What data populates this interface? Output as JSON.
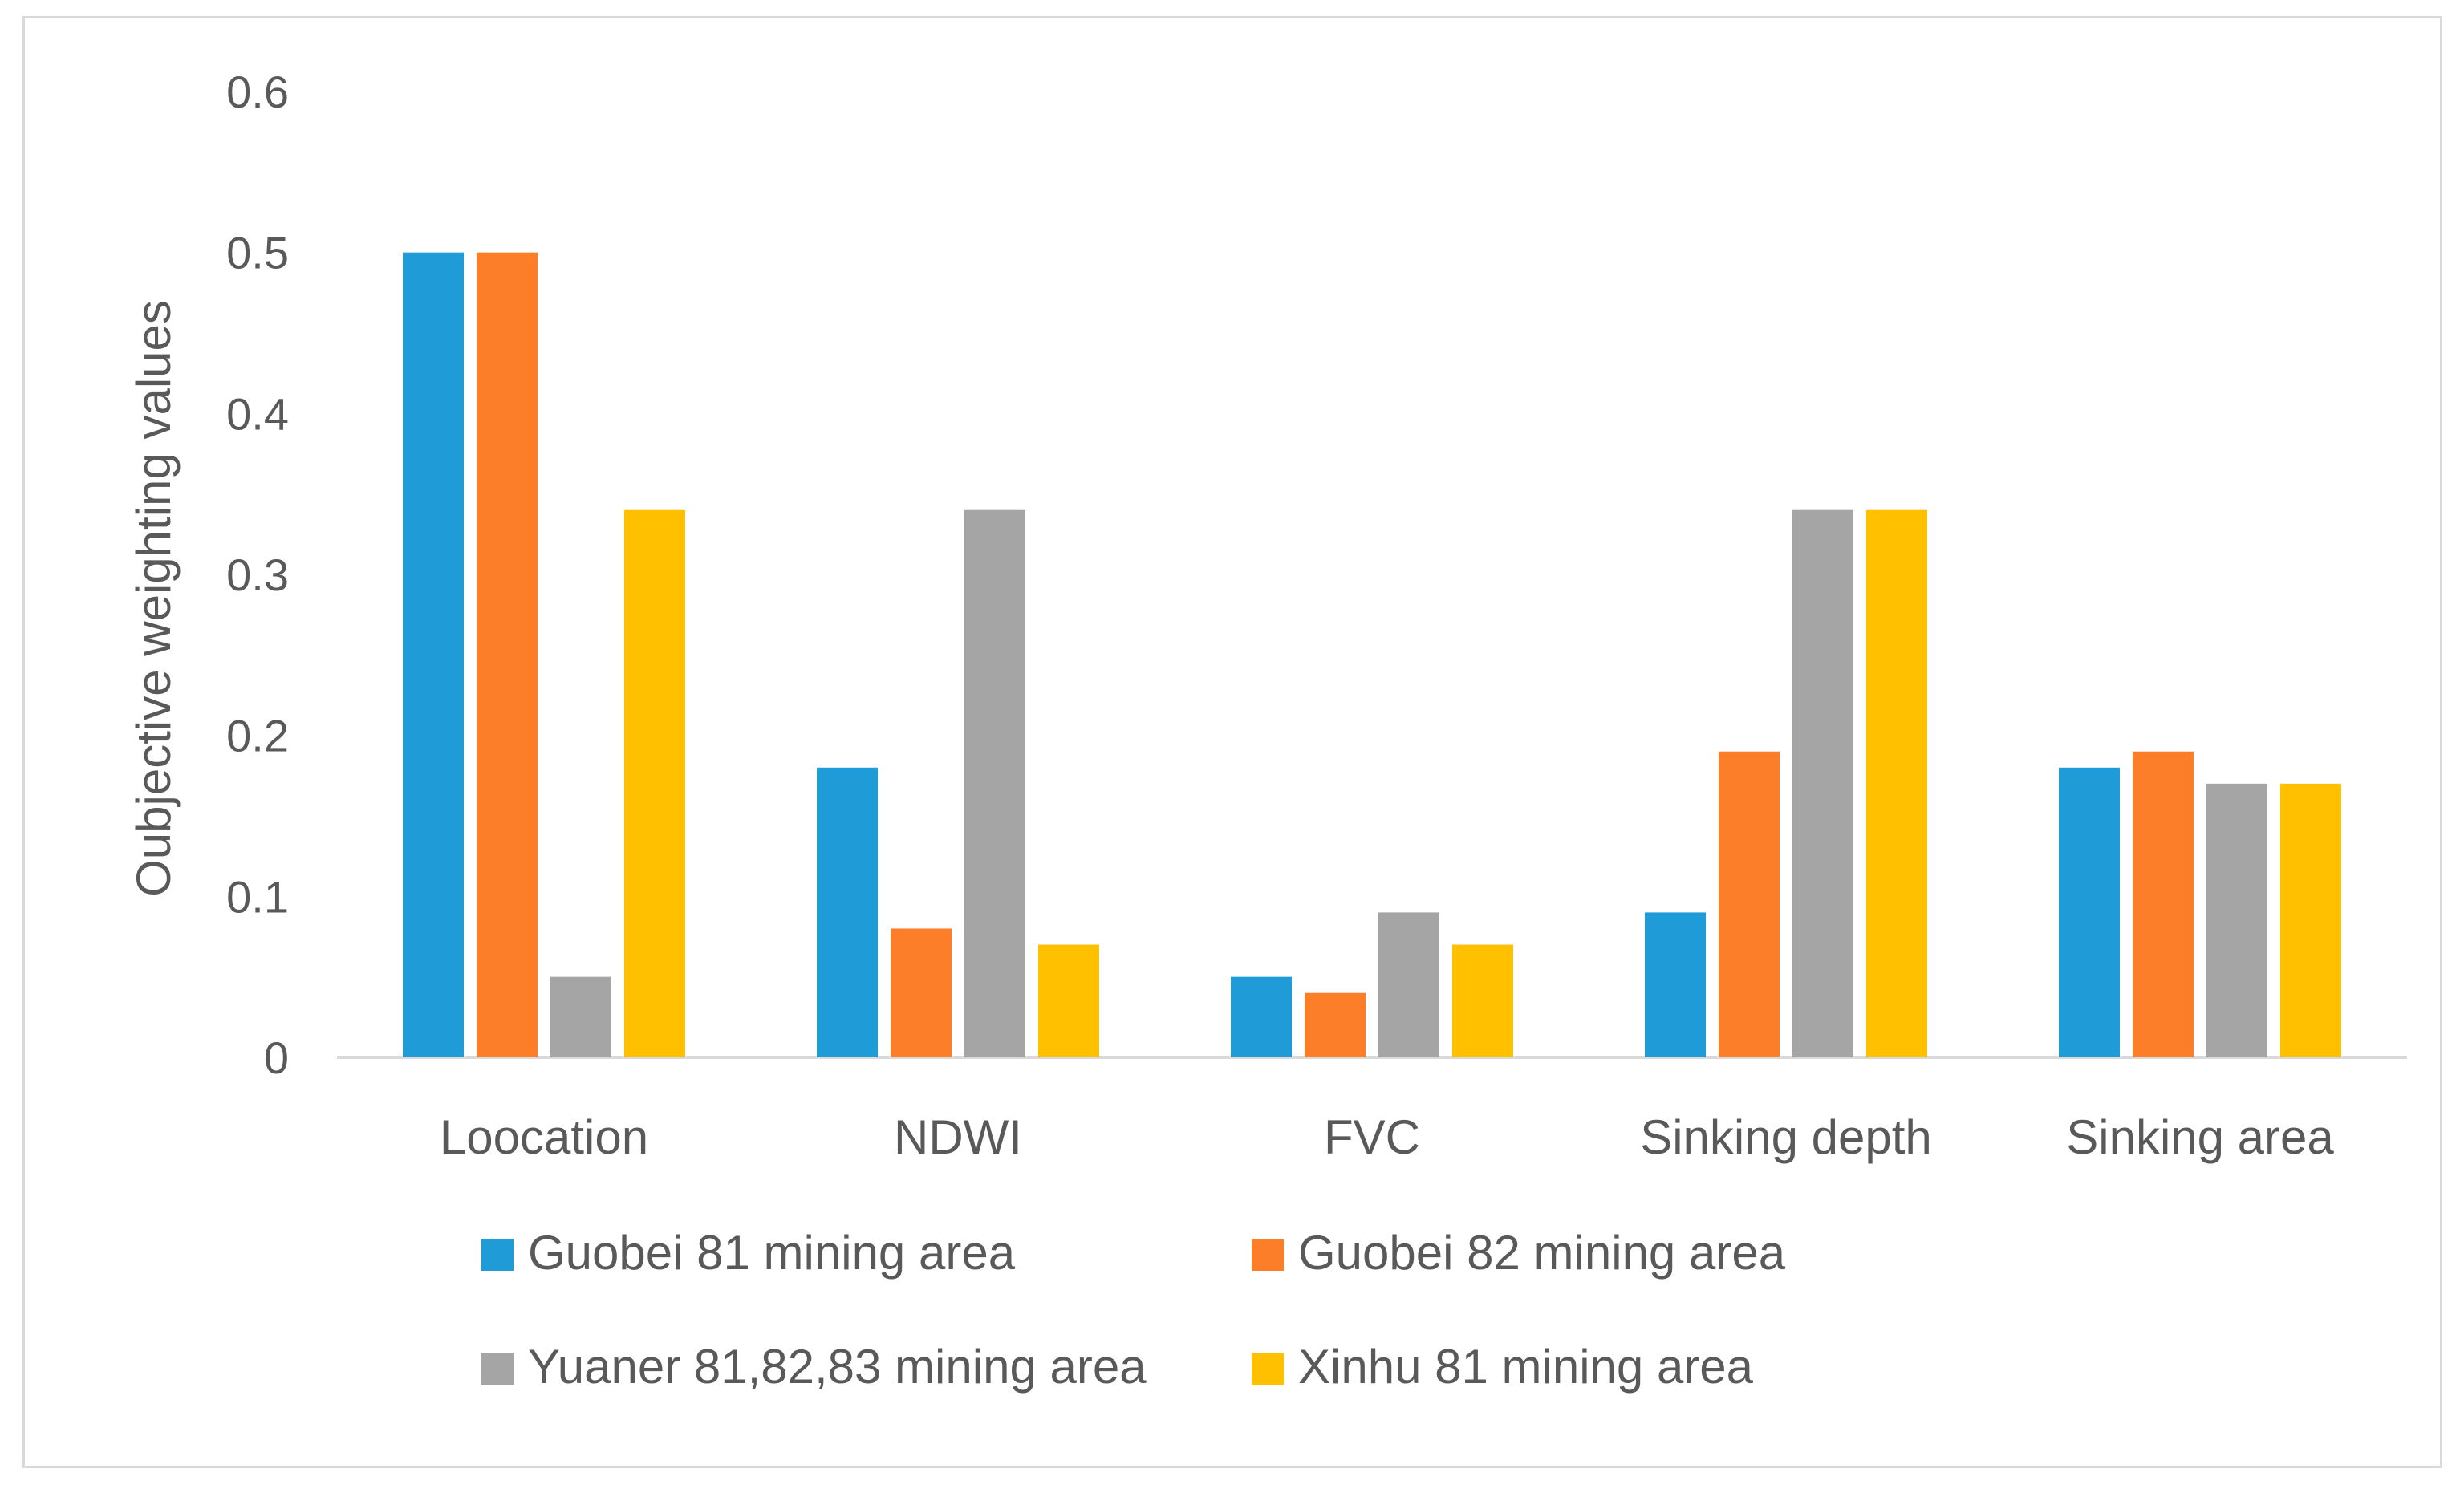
{
  "chart_data": {
    "type": "bar",
    "title": "",
    "xlabel": "",
    "ylabel": "Oubjective weighting values",
    "ylim": [
      0,
      0.6
    ],
    "yticks": [
      {
        "value": 0,
        "label": "0"
      },
      {
        "value": 0.1,
        "label": "0.1"
      },
      {
        "value": 0.2,
        "label": "0.2"
      },
      {
        "value": 0.3,
        "label": "0.3"
      },
      {
        "value": 0.4,
        "label": "0.4"
      },
      {
        "value": 0.5,
        "label": "0.5"
      },
      {
        "value": 0.6,
        "label": "0.6"
      }
    ],
    "grid": false,
    "legend_position": "bottom",
    "categories": [
      "Loocation",
      "NDWI",
      "FVC",
      "Sinking depth",
      "Sinking area"
    ],
    "series": [
      {
        "name": "Guobei 81 mining area",
        "color": "#1f9bd7",
        "values": [
          0.5,
          0.18,
          0.05,
          0.09,
          0.18
        ]
      },
      {
        "name": "Guobei 82 mining area",
        "color": "#fd7e28",
        "values": [
          0.5,
          0.08,
          0.04,
          0.19,
          0.19
        ]
      },
      {
        "name": "Yuaner 81,82,83 mining area",
        "color": "#a5a5a5",
        "values": [
          0.05,
          0.34,
          0.09,
          0.34,
          0.17
        ]
      },
      {
        "name": "Xinhu 81 mining area",
        "color": "#ffc000",
        "values": [
          0.34,
          0.07,
          0.07,
          0.34,
          0.17
        ]
      }
    ],
    "axis_color": "#d9d9d9"
  }
}
